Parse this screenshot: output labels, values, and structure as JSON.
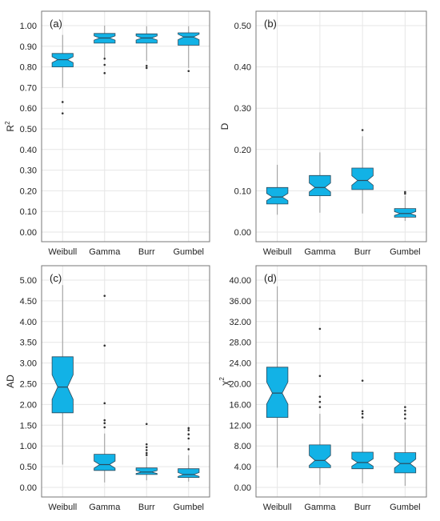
{
  "colors": {
    "box_fill": "#12b2e6",
    "box_stroke": "#2b4a5c",
    "grid": "#e6e6e6",
    "panel_border": "#777777",
    "whisker": "#9a9a9a",
    "text": "#222222"
  },
  "chart_data": [
    {
      "type": "box",
      "panel_label": "(a)",
      "ylabel": "R",
      "ylabel_sup": "2",
      "categories": [
        "Weibull",
        "Gamma",
        "Burr",
        "Gumbel"
      ],
      "ylim": [
        0.0,
        1.0
      ],
      "yticks": [
        0.0,
        0.1,
        0.2,
        0.3,
        0.4,
        0.5,
        0.6,
        0.7,
        0.8,
        0.9,
        1.0
      ],
      "ytick_labels": [
        "0.00",
        "0.10",
        "0.20",
        "0.30",
        "0.40",
        "0.50",
        "0.60",
        "0.70",
        "0.80",
        "0.90",
        "1.00"
      ],
      "grid": true,
      "notched": true,
      "boxes": [
        {
          "category": "Weibull",
          "whisker_low": 0.7,
          "q1": 0.8,
          "median": 0.835,
          "q3": 0.865,
          "whisker_high": 0.955,
          "outliers": [
            0.63,
            0.575
          ]
        },
        {
          "category": "Gamma",
          "whisker_low": 0.845,
          "q1": 0.915,
          "median": 0.94,
          "q3": 0.962,
          "whisker_high": 1.0,
          "outliers": [
            0.84,
            0.81,
            0.77
          ]
        },
        {
          "category": "Burr",
          "whisker_low": 0.83,
          "q1": 0.915,
          "median": 0.94,
          "q3": 0.96,
          "whisker_high": 0.997,
          "outliers": [
            0.805,
            0.795
          ]
        },
        {
          "category": "Gumbel",
          "whisker_low": 0.795,
          "q1": 0.905,
          "median": 0.945,
          "q3": 0.965,
          "whisker_high": 0.997,
          "outliers": [
            0.78
          ]
        }
      ]
    },
    {
      "type": "box",
      "panel_label": "(b)",
      "ylabel": "D",
      "ylabel_sup": "",
      "categories": [
        "Weibull",
        "Gamma",
        "Burr",
        "Gumbel"
      ],
      "ylim": [
        0.0,
        0.5
      ],
      "yticks": [
        0.0,
        0.1,
        0.2,
        0.3,
        0.4,
        0.5
      ],
      "ytick_labels": [
        "0.00",
        "0.10",
        "0.20",
        "0.30",
        "0.40",
        "0.50"
      ],
      "grid": true,
      "notched": true,
      "boxes": [
        {
          "category": "Weibull",
          "whisker_low": 0.042,
          "q1": 0.068,
          "median": 0.085,
          "q3": 0.108,
          "whisker_high": 0.163,
          "outliers": []
        },
        {
          "category": "Gamma",
          "whisker_low": 0.047,
          "q1": 0.088,
          "median": 0.108,
          "q3": 0.137,
          "whisker_high": 0.193,
          "outliers": []
        },
        {
          "category": "Burr",
          "whisker_low": 0.045,
          "q1": 0.103,
          "median": 0.125,
          "q3": 0.155,
          "whisker_high": 0.232,
          "outliers": [
            0.247
          ]
        },
        {
          "category": "Gumbel",
          "whisker_low": 0.027,
          "q1": 0.036,
          "median": 0.045,
          "q3": 0.057,
          "whisker_high": 0.088,
          "outliers": [
            0.093,
            0.097
          ]
        }
      ]
    },
    {
      "type": "box",
      "panel_label": "(c)",
      "ylabel": "AD",
      "ylabel_sup": "",
      "categories": [
        "Weibull",
        "Gamma",
        "Burr",
        "Gumbel"
      ],
      "ylim": [
        0.0,
        5.0
      ],
      "yticks": [
        0.0,
        0.5,
        1.0,
        1.5,
        2.0,
        2.5,
        3.0,
        3.5,
        4.0,
        4.5,
        5.0
      ],
      "ytick_labels": [
        "0.00",
        "0.50",
        "1.00",
        "1.50",
        "2.00",
        "2.50",
        "3.00",
        "3.50",
        "4.00",
        "4.50",
        "5.00"
      ],
      "grid": true,
      "notched": true,
      "boxes": [
        {
          "category": "Weibull",
          "whisker_low": 0.55,
          "q1": 1.8,
          "median": 2.42,
          "q3": 3.15,
          "whisker_high": 4.88,
          "outliers": []
        },
        {
          "category": "Gamma",
          "whisker_low": 0.12,
          "q1": 0.41,
          "median": 0.55,
          "q3": 0.8,
          "whisker_high": 1.3,
          "outliers": [
            1.45,
            1.55,
            1.62,
            2.03,
            3.42,
            4.62
          ]
        },
        {
          "category": "Burr",
          "whisker_low": 0.17,
          "q1": 0.31,
          "median": 0.37,
          "q3": 0.47,
          "whisker_high": 0.73,
          "outliers": [
            0.78,
            0.83,
            0.9,
            0.97,
            1.04,
            1.53
          ]
        },
        {
          "category": "Gumbel",
          "whisker_low": 0.14,
          "q1": 0.24,
          "median": 0.31,
          "q3": 0.45,
          "whisker_high": 0.78,
          "outliers": [
            0.92,
            1.18,
            1.28,
            1.38,
            1.43
          ]
        }
      ]
    },
    {
      "type": "box",
      "panel_label": "(d)",
      "ylabel": "χ",
      "ylabel_sup": "2",
      "categories": [
        "Weibull",
        "Gamma",
        "Burr",
        "Gumbel"
      ],
      "ylim": [
        0.0,
        40.0
      ],
      "yticks": [
        0,
        4,
        8,
        12,
        16,
        20,
        24,
        28,
        32,
        36,
        40
      ],
      "ytick_labels": [
        "0.00",
        "4.00",
        "8.00",
        "12.00",
        "16.00",
        "20.00",
        "24.00",
        "28.00",
        "32.00",
        "36.00",
        "40.00"
      ],
      "grid": true,
      "notched": true,
      "boxes": [
        {
          "category": "Weibull",
          "whisker_low": 3.8,
          "q1": 13.5,
          "median": 18.2,
          "q3": 23.2,
          "whisker_high": 38.8,
          "outliers": []
        },
        {
          "category": "Gamma",
          "whisker_low": 0.5,
          "q1": 3.8,
          "median": 5.2,
          "q3": 8.2,
          "whisker_high": 14.2,
          "outliers": [
            15.5,
            16.5,
            17.5,
            21.5,
            30.6
          ]
        },
        {
          "category": "Burr",
          "whisker_low": 0.8,
          "q1": 3.6,
          "median": 4.8,
          "q3": 6.8,
          "whisker_high": 12.3,
          "outliers": [
            13.5,
            14.2,
            14.7,
            20.6
          ]
        },
        {
          "category": "Gumbel",
          "whisker_low": 0.3,
          "q1": 2.8,
          "median": 4.6,
          "q3": 6.7,
          "whisker_high": 12.5,
          "outliers": [
            13.3,
            14.1,
            14.8,
            15.5
          ]
        }
      ]
    }
  ]
}
